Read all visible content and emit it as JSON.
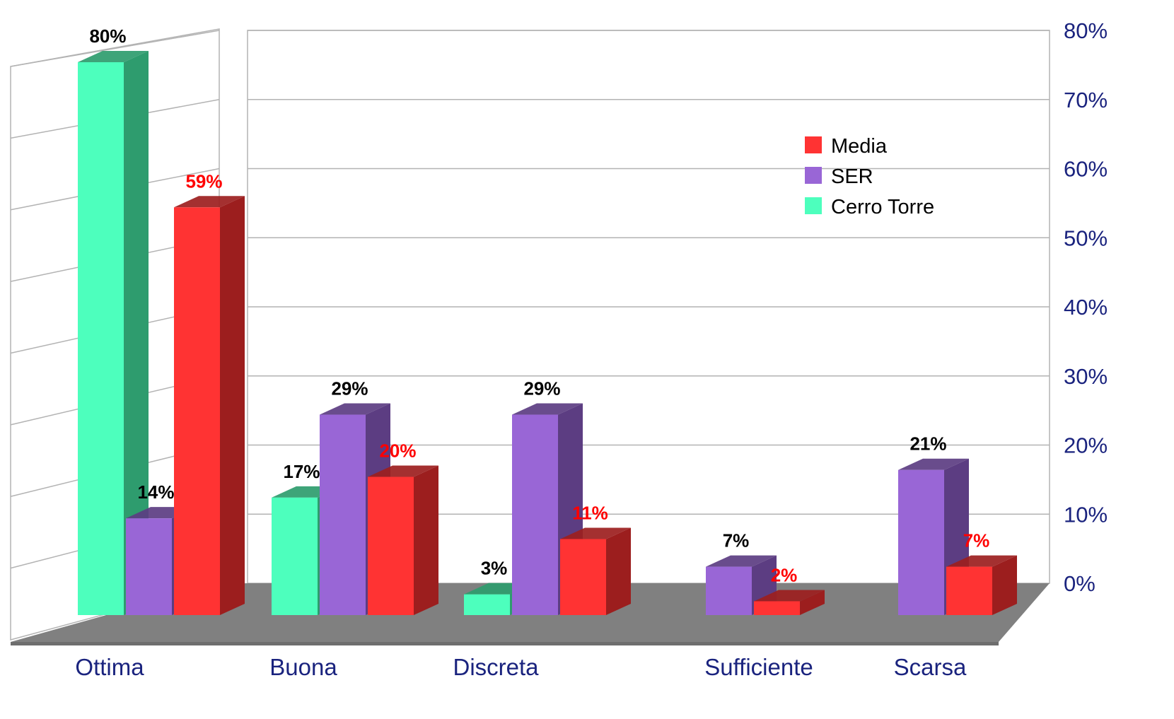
{
  "chart_data": {
    "type": "bar",
    "title": "",
    "xlabel": "",
    "ylabel": "",
    "categories": [
      "Ottima",
      "Buona",
      "Discreta",
      "Sufficiente",
      "Scarsa"
    ],
    "y_axis": {
      "min": 0,
      "max": 80,
      "step": 10,
      "side": "right",
      "tick_labels": [
        "0%",
        "10%",
        "20%",
        "30%",
        "40%",
        "50%",
        "60%",
        "70%",
        "80%"
      ]
    },
    "grid": true,
    "three_d": true,
    "legend_position": "top-right",
    "legend_order": [
      "Media",
      "SER",
      "Cerro Torre"
    ],
    "series": [
      {
        "name": "Cerro Torre",
        "color": "#4dffbd",
        "side_color": "#2e9c6e",
        "label_color": "#000000",
        "values": [
          80,
          17,
          3,
          null,
          null
        ],
        "labels": [
          "80%",
          "17%",
          "3%",
          "",
          ""
        ]
      },
      {
        "name": "SER",
        "color": "#9966d6",
        "side_color": "#5c3d82",
        "label_color": "#000000",
        "values": [
          14,
          29,
          29,
          7,
          21
        ],
        "labels": [
          "14%",
          "29%",
          "29%",
          "7%",
          "21%"
        ]
      },
      {
        "name": "Media",
        "color": "#ff3333",
        "side_color": "#9c1e1e",
        "label_color": "#ff0000",
        "values": [
          59,
          20,
          11,
          2,
          7
        ],
        "labels": [
          "59%",
          "20%",
          "11%",
          "2%",
          "7%"
        ]
      }
    ],
    "colors": {
      "floor": "#808080",
      "grid": "#b3b3b3",
      "category_label": "#1a237e",
      "axis_tick_label": "#1a237e"
    }
  }
}
